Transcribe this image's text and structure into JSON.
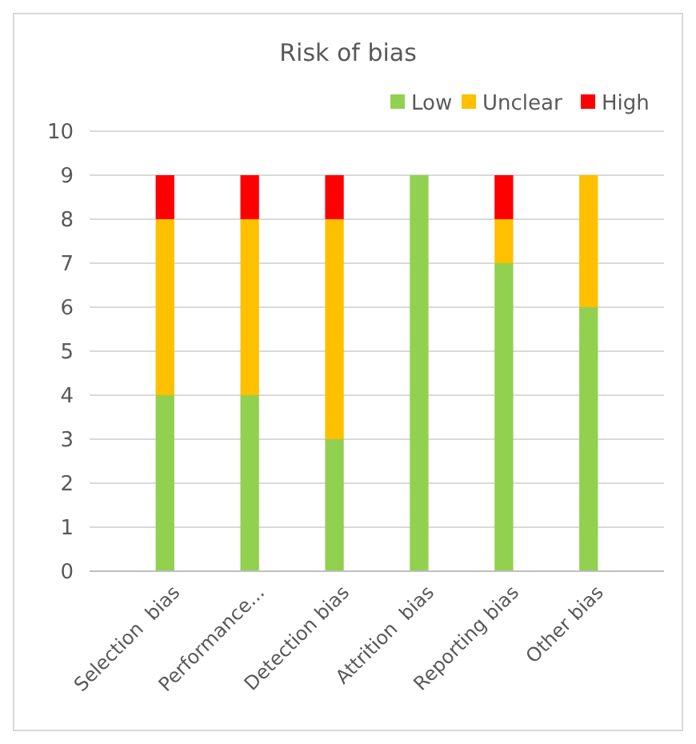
{
  "chart_data": {
    "type": "bar",
    "title": "Risk of bias",
    "stacked": true,
    "categories": [
      "Selection  bias",
      "Performance...",
      "Detection bias",
      "Attrition  bias",
      "Reporting bias",
      "Other bias"
    ],
    "series": [
      {
        "name": "Low",
        "color": "#92d050",
        "values": [
          4,
          4,
          3,
          9,
          7,
          6
        ]
      },
      {
        "name": "Unclear",
        "color": "#ffc000",
        "values": [
          4,
          4,
          5,
          0,
          1,
          3
        ]
      },
      {
        "name": "High",
        "color": "#ff0000",
        "values": [
          1,
          1,
          1,
          0,
          1,
          0
        ]
      }
    ],
    "ylim": [
      0,
      10
    ],
    "yticks": [
      0,
      1,
      2,
      3,
      4,
      5,
      6,
      7,
      8,
      9,
      10
    ],
    "grid": "y",
    "legend": "top right"
  }
}
